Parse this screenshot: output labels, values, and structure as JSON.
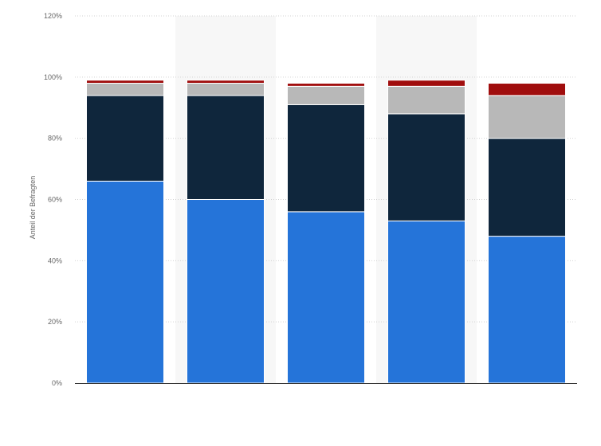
{
  "chart_data": {
    "type": "bar",
    "stacked": true,
    "ylabel": "Anteil der Befragten",
    "xlabel": "",
    "ylim": [
      0,
      120
    ],
    "yticks": [
      "0%",
      "20%",
      "40%",
      "60%",
      "80%",
      "100%",
      "120%"
    ],
    "grid": true,
    "categories": [
      "",
      "",
      "",
      "",
      ""
    ],
    "series": [
      {
        "color": "#2574d9",
        "values": [
          66,
          60,
          56,
          53,
          48
        ]
      },
      {
        "color": "#0f263c",
        "values": [
          28,
          34,
          35,
          35,
          32
        ]
      },
      {
        "color": "#b8b8b8",
        "values": [
          4,
          4,
          6,
          9,
          14
        ]
      },
      {
        "color": "#a00d0d",
        "values": [
          1,
          1,
          1,
          2,
          4
        ]
      }
    ]
  }
}
